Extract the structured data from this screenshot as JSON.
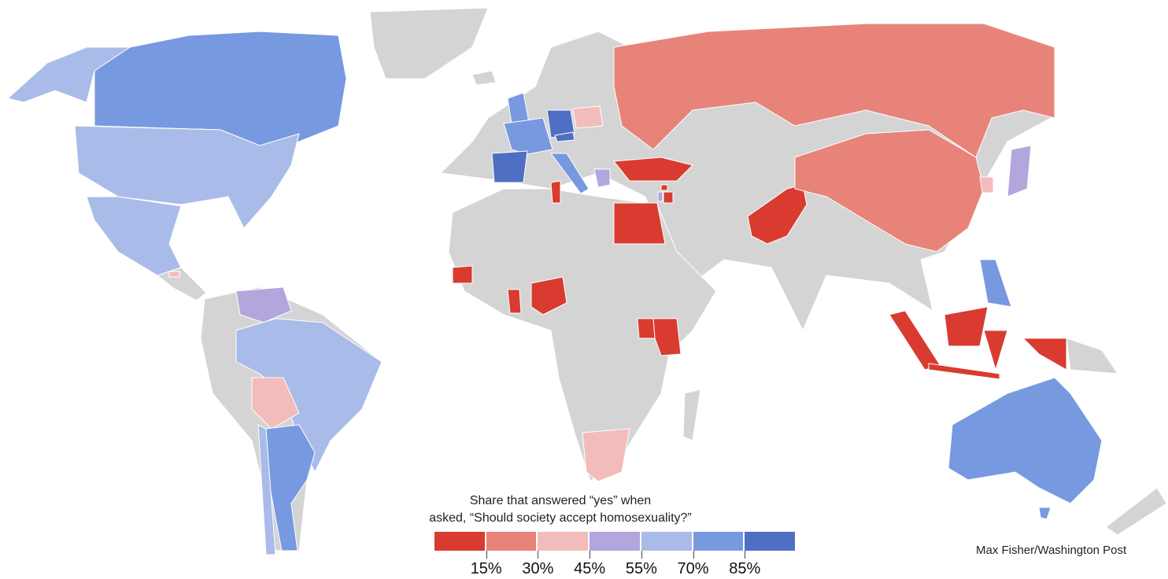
{
  "legend": {
    "title_line1": "Share that  answered “yes” when",
    "title_line2": "asked, “Should society accept homosexuality?”",
    "colors": [
      "#d93b30",
      "#e8837a",
      "#f2bcbb",
      "#b2a6dd",
      "#a9bbe8",
      "#7799e0",
      "#4f6fc4"
    ],
    "thresholds": [
      "15%",
      "30%",
      "45%",
      "55%",
      "70%",
      "85%"
    ]
  },
  "no_data_color": "#d4d4d4",
  "credit": "Max Fisher/Washington Post",
  "countries": {
    "canada": 5,
    "united-states": 4,
    "mexico": 4,
    "el-salvador": 2,
    "venezuela": 3,
    "brazil": 4,
    "bolivia": 2,
    "argentina": 5,
    "chile": 4,
    "united-kingdom": 5,
    "france": 5,
    "spain": 6,
    "germany": 6,
    "poland": 2,
    "italy": 5,
    "greece": 3,
    "czech-republic": 6,
    "russia": 1,
    "turkey": 0,
    "egypt": 0,
    "tunisia": 0,
    "lebanon": 0,
    "israel": 3,
    "jordan": 0,
    "pakistan": 0,
    "china": 1,
    "south-korea": 2,
    "japan": 3,
    "philippines": 5,
    "indonesia": 0,
    "malaysia": 0,
    "australia": 5,
    "senegal": 0,
    "ghana": 0,
    "nigeria": 0,
    "kenya": 0,
    "uganda": 0,
    "south-africa": 2
  }
}
